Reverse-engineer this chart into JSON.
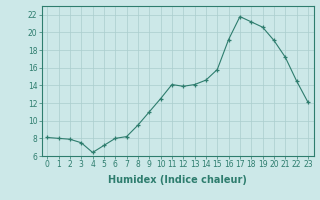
{
  "x": [
    0,
    1,
    2,
    3,
    4,
    5,
    6,
    7,
    8,
    9,
    10,
    11,
    12,
    13,
    14,
    15,
    16,
    17,
    18,
    19,
    20,
    21,
    22,
    23
  ],
  "y": [
    8.1,
    8.0,
    7.9,
    7.5,
    6.4,
    7.2,
    8.0,
    8.2,
    9.5,
    11.0,
    12.5,
    14.1,
    13.9,
    14.1,
    14.6,
    15.8,
    19.2,
    21.8,
    21.2,
    20.6,
    19.1,
    17.2,
    14.5,
    12.1
  ],
  "line_color": "#2e7d6e",
  "marker": "+",
  "bg_color": "#cce8e8",
  "grid_color": "#aacece",
  "xlabel": "Humidex (Indice chaleur)",
  "ylim": [
    6,
    23
  ],
  "xlim": [
    -0.5,
    23.5
  ],
  "yticks": [
    6,
    8,
    10,
    12,
    14,
    16,
    18,
    20,
    22
  ],
  "xticks": [
    0,
    1,
    2,
    3,
    4,
    5,
    6,
    7,
    8,
    9,
    10,
    11,
    12,
    13,
    14,
    15,
    16,
    17,
    18,
    19,
    20,
    21,
    22,
    23
  ],
  "tick_fontsize": 5.5,
  "xlabel_fontsize": 7.0,
  "linewidth": 0.8,
  "markersize": 3.5,
  "markeredgewidth": 0.9
}
